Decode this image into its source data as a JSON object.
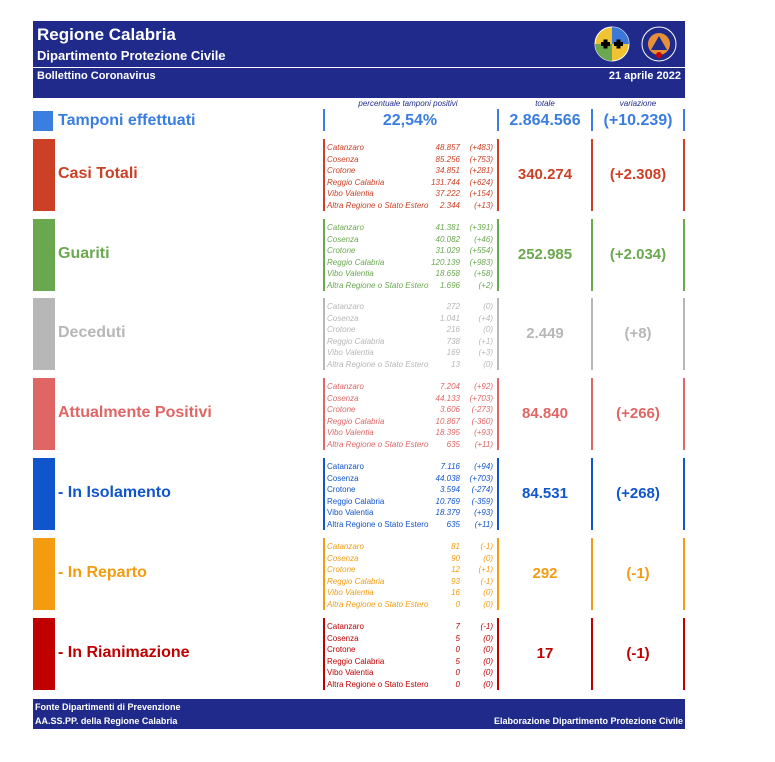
{
  "header": {
    "title": "Regione Calabria",
    "subtitle": "Dipartimento Protezione Civile",
    "bulletin": "Bollettino Coronavirus",
    "date": "21 aprile 2022",
    "logo_text": "PROTEZIONE CIVILE"
  },
  "columns": {
    "percent_header": "percentuale tamponi positivi",
    "total_header": "totale",
    "variation_header": "variazione"
  },
  "tamponi": {
    "label": "Tamponi effettuati",
    "percent": "22,54%",
    "total": "2.864.566",
    "variation": "(+10.239)",
    "color": "#3a7ee0"
  },
  "blocks": [
    {
      "label": "Casi Totali",
      "color": "#cc4125",
      "total": "340.274",
      "variation": "(+2.308)",
      "rows": [
        {
          "place": "Catanzaro",
          "value": "48.857",
          "delta": "(+483)"
        },
        {
          "place": "Cosenza",
          "value": "85.256",
          "delta": "(+753)"
        },
        {
          "place": "Crotone",
          "value": "34.851",
          "delta": "(+281)"
        },
        {
          "place": "Reggio Calabria",
          "value": "131.744",
          "delta": "(+624)"
        },
        {
          "place": "Vibo Valentia",
          "value": "37.222",
          "delta": "(+154)"
        },
        {
          "place": "Altra Regione o Stato Estero",
          "value": "2.344",
          "delta": "(+13)"
        }
      ]
    },
    {
      "label": "Guariti",
      "color": "#6aa84f",
      "total": "252.985",
      "variation": "(+2.034)",
      "rows": [
        {
          "place": "Catanzaro",
          "value": "41.381",
          "delta": "(+391)"
        },
        {
          "place": "Cosenza",
          "value": "40.082",
          "delta": "(+46)"
        },
        {
          "place": "Crotone",
          "value": "31.029",
          "delta": "(+554)"
        },
        {
          "place": "Reggio Calabria",
          "value": "120.139",
          "delta": "(+983)"
        },
        {
          "place": "Vibo Valentia",
          "value": "18.658",
          "delta": "(+58)"
        },
        {
          "place": "Altra Regione o Stato Estero",
          "value": "1.696",
          "delta": "(+2)"
        }
      ]
    },
    {
      "label": "Deceduti",
      "color": "#b7b7b7",
      "total": "2.449",
      "variation": "(+8)",
      "rows": [
        {
          "place": "Catanzaro",
          "value": "272",
          "delta": "(0)"
        },
        {
          "place": "Cosenza",
          "value": "1.041",
          "delta": "(+4)"
        },
        {
          "place": "Crotone",
          "value": "216",
          "delta": "(0)"
        },
        {
          "place": "Reggio Calabria",
          "value": "738",
          "delta": "(+1)"
        },
        {
          "place": "Vibo Valentia",
          "value": "169",
          "delta": "(+3)"
        },
        {
          "place": "Altra Regione o Stato Estero",
          "value": "13",
          "delta": "(0)"
        }
      ]
    },
    {
      "label": "Attualmente Positivi",
      "color": "#e06666",
      "total": "84.840",
      "variation": "(+266)",
      "rows": [
        {
          "place": "Catanzaro",
          "value": "7.204",
          "delta": "(+92)"
        },
        {
          "place": "Cosenza",
          "value": "44.133",
          "delta": "(+703)"
        },
        {
          "place": "Crotone",
          "value": "3.606",
          "delta": "(-273)"
        },
        {
          "place": "Reggio Calabria",
          "value": "10.867",
          "delta": "(-360)"
        },
        {
          "place": "Vibo Valentia",
          "value": "18.395",
          "delta": "(+93)"
        },
        {
          "place": "Altra Regione o Stato Estero",
          "value": "635",
          "delta": "(+11)"
        }
      ]
    },
    {
      "label": " - In Isolamento",
      "color": "#1155cc",
      "total": "84.531",
      "variation": "(+268)",
      "rows": [
        {
          "place": "Catanzaro",
          "value": "7.116",
          "delta": "(+94)"
        },
        {
          "place": "Cosenza",
          "value": "44.038",
          "delta": "(+703)"
        },
        {
          "place": "Crotone",
          "value": "3.594",
          "delta": "(-274)"
        },
        {
          "place": "Reggio Calabria",
          "value": "10.769",
          "delta": "(-359)"
        },
        {
          "place": "Vibo Valentia",
          "value": "18.379",
          "delta": "(+93)"
        },
        {
          "place": "Altra Regione o Stato Estero",
          "value": "635",
          "delta": "(+11)"
        }
      ]
    },
    {
      "label": " - In Reparto",
      "color": "#f39c12",
      "total": "292",
      "variation": "(-1)",
      "rows": [
        {
          "place": "Catanzaro",
          "value": "81",
          "delta": "(-1)"
        },
        {
          "place": "Cosenza",
          "value": "90",
          "delta": "(0)"
        },
        {
          "place": "Crotone",
          "value": "12",
          "delta": "(+1)"
        },
        {
          "place": "Reggio Calabria",
          "value": "93",
          "delta": "(-1)"
        },
        {
          "place": "Vibo Valentia",
          "value": "16",
          "delta": "(0)"
        },
        {
          "place": "Altra Regione o Stato Estero",
          "value": "0",
          "delta": "(0)"
        }
      ]
    },
    {
      "label": " - In Rianimazione",
      "color": "#c00000",
      "total": "17",
      "variation": "(-1)",
      "rows": [
        {
          "place": "Catanzaro",
          "value": "7",
          "delta": "(-1)"
        },
        {
          "place": "Cosenza",
          "value": "5",
          "delta": "(0)"
        },
        {
          "place": "Crotone",
          "value": "0",
          "delta": "(0)"
        },
        {
          "place": "Reggio Calabria",
          "value": "5",
          "delta": "(0)"
        },
        {
          "place": "Vibo Valentia",
          "value": "0",
          "delta": "(0)"
        },
        {
          "place": "Altra Regione o Stato Estero",
          "value": "0",
          "delta": "(0)"
        }
      ]
    }
  ],
  "footer": {
    "source1": "Fonte Dipartimenti di Prevenzione",
    "source2": "AA.SS.PP.  della Regione Calabria",
    "credit": "Elaborazione Dipartimento Protezione Civile"
  }
}
